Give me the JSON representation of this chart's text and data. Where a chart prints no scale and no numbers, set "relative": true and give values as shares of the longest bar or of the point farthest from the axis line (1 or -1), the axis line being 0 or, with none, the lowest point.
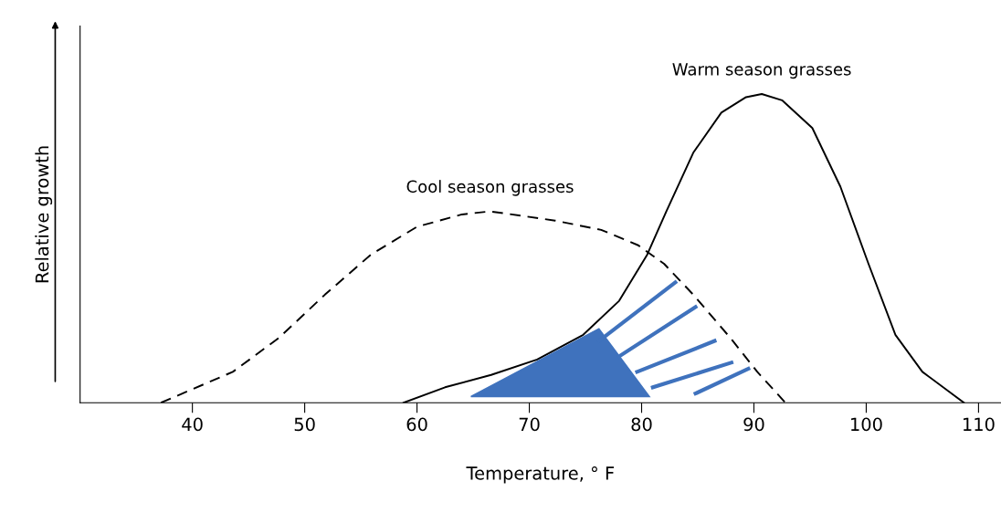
{
  "chart_data": {
    "type": "line",
    "relative": true,
    "xlabel": "Temperature, ° F",
    "ylabel": "Relative growth",
    "xlim": [
      30,
      112
    ],
    "xticks": [
      40,
      50,
      60,
      70,
      80,
      90,
      100,
      110
    ],
    "grid": false,
    "legend": false,
    "marker": "none",
    "series": [
      {
        "name": "Cool season grasses",
        "color": "#000000",
        "line_style": "dashed",
        "x": [
          37.2,
          43.6,
          47.7,
          51.8,
          55.9,
          60,
          64,
          66.5,
          72.3,
          76.4,
          79.7,
          82,
          84.6,
          87.9,
          90.3,
          92.8
        ],
        "values": [
          0,
          0.1,
          0.21,
          0.35,
          0.48,
          0.57,
          0.61,
          0.62,
          0.59,
          0.56,
          0.51,
          0.45,
          0.35,
          0.21,
          0.1,
          0
        ]
      },
      {
        "name": "Warm season grasses",
        "color": "#000000",
        "line_style": "solid",
        "x": [
          58.8,
          62.5,
          66.6,
          70.7,
          74.8,
          78,
          80.5,
          82.2,
          84.6,
          87.1,
          89.3,
          90.7,
          92.5,
          95.2,
          97.7,
          100.2,
          102.6,
          105,
          108.7
        ],
        "values": [
          0,
          0.05,
          0.09,
          0.14,
          0.22,
          0.33,
          0.48,
          0.62,
          0.81,
          0.94,
          0.99,
          1,
          0.98,
          0.89,
          0.7,
          0.45,
          0.22,
          0.1,
          0
        ]
      }
    ]
  }
}
